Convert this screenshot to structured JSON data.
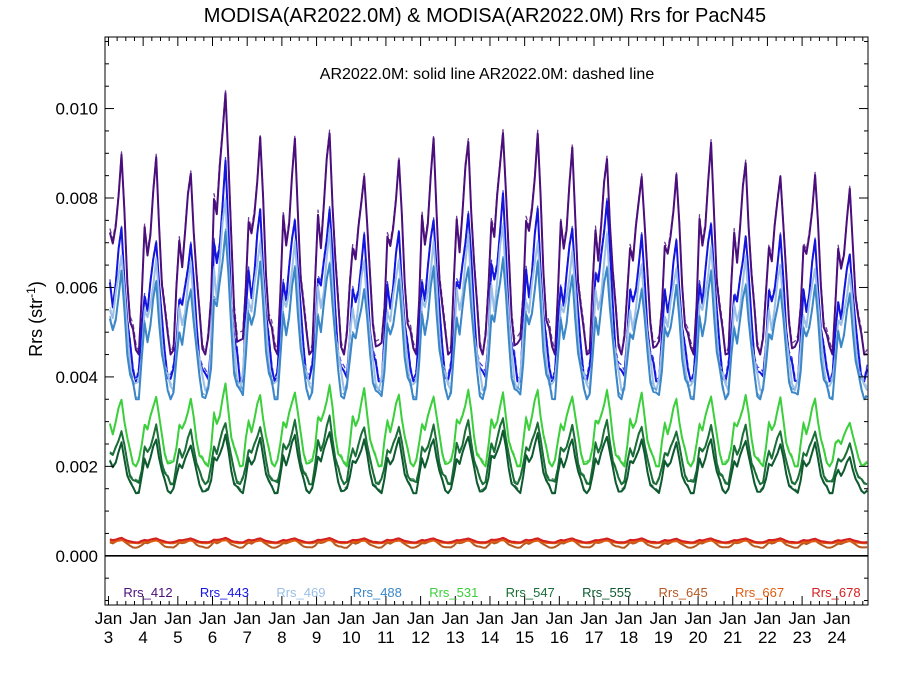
{
  "chart_data": {
    "type": "line",
    "title": "MODISA(AR2022.0M) & MODISA(AR2022.0M)  Rrs for PacN45",
    "annotation": "AR2022.0M: solid line   AR2022.0M: dashed line",
    "ylabel": "Rrs (str",
    "ylabel_sup": "-1",
    "ylabel_close": ")",
    "ylim": [
      -0.0011,
      0.0116
    ],
    "yticks": [
      "0.000",
      "0.002",
      "0.004",
      "0.006",
      "0.008",
      "0.010"
    ],
    "ytick_values": [
      0,
      0.002,
      0.004,
      0.006,
      0.008,
      0.01
    ],
    "xlim": [
      2002.9,
      2024.9
    ],
    "xtick_month": "Jan",
    "xtick_years": [
      "3",
      "4",
      "5",
      "6",
      "7",
      "8",
      "9",
      "10",
      "11",
      "12",
      "13",
      "14",
      "15",
      "16",
      "17",
      "18",
      "19",
      "20",
      "21",
      "22",
      "23",
      "24"
    ],
    "grid": false,
    "legend_position": "bottom",
    "series_style": "seasonal monthly climatology: value = trough + (peak - trough) * seasonal shape, peak each year in late spring",
    "series": [
      {
        "name": "Rrs_412",
        "color": "#4b0f7d",
        "trough": 0.0045,
        "peaks": [
          0.0089,
          0.0088,
          0.0086,
          0.0105,
          0.0093,
          0.0092,
          0.0095,
          0.0086,
          0.0088,
          0.0092,
          0.0093,
          0.0096,
          0.0094,
          0.009,
          0.0089,
          0.0086,
          0.0085,
          0.0091,
          0.0088,
          0.0086,
          0.0085,
          0.0081
        ]
      },
      {
        "name": "Rrs_443",
        "color": "#1515e0",
        "trough": 0.0039,
        "peaks": [
          0.0073,
          0.0071,
          0.007,
          0.0087,
          0.0077,
          0.0076,
          0.0078,
          0.0071,
          0.0072,
          0.0076,
          0.0077,
          0.008,
          0.0077,
          0.0074,
          0.008,
          0.0071,
          0.007,
          0.0075,
          0.0072,
          0.0071,
          0.007,
          0.0068
        ]
      },
      {
        "name": "Rrs_469",
        "color": "#9bbfe6",
        "trough": 0.0037,
        "peaks": [
          0.0068,
          0.0066,
          0.0065,
          0.008,
          0.0071,
          0.007,
          0.0072,
          0.0066,
          0.0067,
          0.007,
          0.0071,
          0.0074,
          0.0071,
          0.0068,
          0.0071,
          0.0065,
          0.0065,
          0.0069,
          0.0066,
          0.0065,
          0.0065,
          0.0063
        ]
      },
      {
        "name": "Rrs_488",
        "color": "#3c87c8",
        "trough": 0.0035,
        "peaks": [
          0.0063,
          0.0061,
          0.006,
          0.0073,
          0.0065,
          0.0064,
          0.0066,
          0.006,
          0.0061,
          0.0064,
          0.0065,
          0.0067,
          0.0065,
          0.0062,
          0.0065,
          0.006,
          0.006,
          0.0063,
          0.0061,
          0.006,
          0.006,
          0.0058
        ]
      },
      {
        "name": "Rrs_531",
        "color": "#3ccf3c",
        "trough": 0.002,
        "peaks": [
          0.0035,
          0.0036,
          0.0035,
          0.0038,
          0.0036,
          0.0037,
          0.0038,
          0.0037,
          0.0036,
          0.0036,
          0.0037,
          0.0036,
          0.0037,
          0.0036,
          0.0037,
          0.0036,
          0.0035,
          0.0036,
          0.0036,
          0.0035,
          0.0035,
          0.003
        ]
      },
      {
        "name": "Rrs_547",
        "color": "#1a6e37",
        "trough": 0.0016,
        "peaks": [
          0.0028,
          0.0029,
          0.0028,
          0.003,
          0.0029,
          0.003,
          0.0031,
          0.0029,
          0.0029,
          0.0029,
          0.003,
          0.0031,
          0.003,
          0.0029,
          0.003,
          0.0029,
          0.0028,
          0.0029,
          0.0029,
          0.0028,
          0.0028,
          0.0025
        ]
      },
      {
        "name": "Rrs_555",
        "color": "#0e5a30",
        "trough": 0.0014,
        "peaks": [
          0.0025,
          0.0026,
          0.0025,
          0.0027,
          0.0026,
          0.0027,
          0.0028,
          0.0026,
          0.0026,
          0.0026,
          0.0027,
          0.0028,
          0.0027,
          0.0026,
          0.0027,
          0.0026,
          0.0025,
          0.0026,
          0.0026,
          0.0025,
          0.0025,
          0.0022
        ]
      },
      {
        "name": "Rrs_645",
        "color": "#b55a22",
        "trough": 0.00018,
        "peaks": [
          0.00038,
          0.00037,
          0.00036,
          0.00038,
          0.00037,
          0.00036,
          0.00037,
          0.00036,
          0.00037,
          0.00036,
          0.00036,
          0.00037,
          0.00036,
          0.00036,
          0.00037,
          0.00036,
          0.00035,
          0.00036,
          0.00036,
          0.00036,
          0.00035,
          0.00034
        ]
      },
      {
        "name": "Rrs_667",
        "color": "#e05a10",
        "trough": 0.00028,
        "peaks": [
          0.00035,
          0.00034,
          0.00034,
          0.00035,
          0.00034,
          0.00034,
          0.00035,
          0.00034,
          0.00034,
          0.00034,
          0.00034,
          0.00035,
          0.00034,
          0.00034,
          0.00034,
          0.00034,
          0.00033,
          0.00034,
          0.00034,
          0.00034,
          0.00033,
          0.00033
        ]
      },
      {
        "name": "Rrs_678",
        "color": "#d42020",
        "trough": 0.0003,
        "peaks": [
          0.0004,
          0.00039,
          0.00039,
          0.0004,
          0.00039,
          0.00039,
          0.0004,
          0.00039,
          0.00039,
          0.00039,
          0.00039,
          0.0004,
          0.00039,
          0.00039,
          0.00039,
          0.00039,
          0.00038,
          0.00039,
          0.00039,
          0.00039,
          0.00038,
          0.00038
        ]
      }
    ]
  }
}
